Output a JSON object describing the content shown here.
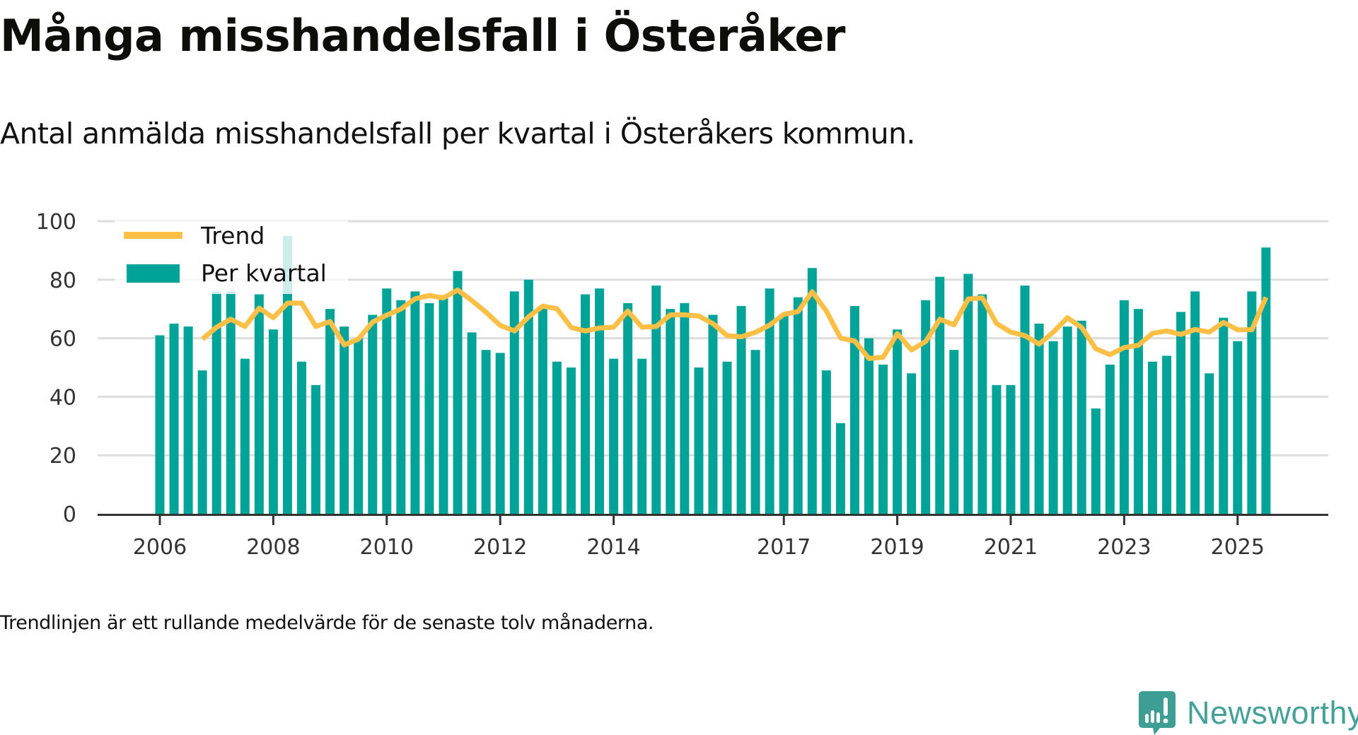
{
  "header": {
    "title": "Många misshandelsfall i Österåker",
    "subtitle": "Antal anmälda misshandelsfall per kvartal i Österåkers kommun."
  },
  "footnote": "Trendlinjen är ett rullande medelvärde för de senaste tolv månaderna.",
  "brand": {
    "name": "Newsworthy",
    "icon": "newsworthy-logo-icon",
    "color": "#45a197"
  },
  "colors": {
    "bars": "#00a398",
    "trend": "#fdbf45",
    "grid": "#dddddd",
    "axis": "#333333"
  },
  "chart_data": {
    "type": "bar",
    "title": "Många misshandelsfall i Österåker",
    "subtitle": "Antal anmälda misshandelsfall per kvartal i Österåkers kommun.",
    "xlabel": "",
    "ylabel": "",
    "ylim": [
      0,
      100
    ],
    "yticks": [
      0,
      20,
      40,
      60,
      80,
      100
    ],
    "grid": true,
    "legend_position": "top-left",
    "start_period": "2006 Q1",
    "end_period": "2025 Q3",
    "xticks": [
      {
        "label": "2006",
        "index": 0
      },
      {
        "label": "2008",
        "index": 8
      },
      {
        "label": "2010",
        "index": 16
      },
      {
        "label": "2012",
        "index": 24
      },
      {
        "label": "2014",
        "index": 32
      },
      {
        "label": "2017",
        "index": 44
      },
      {
        "label": "2019",
        "index": 52
      },
      {
        "label": "2021",
        "index": 60
      },
      {
        "label": "2023",
        "index": 68
      },
      {
        "label": "2025",
        "index": 76
      }
    ],
    "series": [
      {
        "name": "Per kvartal",
        "type": "bar",
        "values": [
          61,
          65,
          64,
          49,
          76,
          76,
          53,
          75,
          63,
          95,
          52,
          44,
          70,
          64,
          60,
          68,
          77,
          73,
          76,
          72,
          74,
          83,
          62,
          56,
          55,
          76,
          80,
          71,
          52,
          50,
          75,
          77,
          53,
          72,
          53,
          78,
          70,
          72,
          50,
          68,
          52,
          71,
          56,
          77,
          68,
          74,
          84,
          49,
          31,
          71,
          60,
          51,
          63,
          48,
          73,
          81,
          56,
          82,
          75,
          44,
          44,
          78,
          65,
          59,
          64,
          66,
          36,
          51,
          73,
          70,
          52,
          54,
          69,
          76,
          48,
          67,
          59,
          76,
          91
        ]
      },
      {
        "name": "Trend",
        "type": "line",
        "start_index": 3,
        "values": [
          59.7,
          63.8,
          66.5,
          64.0,
          70.3,
          67.0,
          72.0,
          72.0,
          64.0,
          65.7,
          57.7,
          59.7,
          65.5,
          67.9,
          70.0,
          73.5,
          74.6,
          73.8,
          76.5,
          72.9,
          68.9,
          64.4,
          62.5,
          67.3,
          71.0,
          70.1,
          63.7,
          62.5,
          63.5,
          63.8,
          69.3,
          63.8,
          64.0,
          68.0,
          68.0,
          67.6,
          65.0,
          60.9,
          60.5,
          62.0,
          64.5,
          68.2,
          69.1,
          75.9,
          69.3,
          60.1,
          59.0,
          53.1,
          53.5,
          61.6,
          56.0,
          58.9,
          66.5,
          64.6,
          73.4,
          73.8,
          65.0,
          62.1,
          60.9,
          58.0,
          62.1,
          67.0,
          63.7,
          56.4,
          54.4,
          56.8,
          57.6,
          61.7,
          62.5,
          61.3,
          63.0,
          62.1,
          65.4,
          62.9,
          62.9,
          74.0
        ]
      }
    ],
    "legend": [
      "Trend",
      "Per kvartal"
    ]
  }
}
